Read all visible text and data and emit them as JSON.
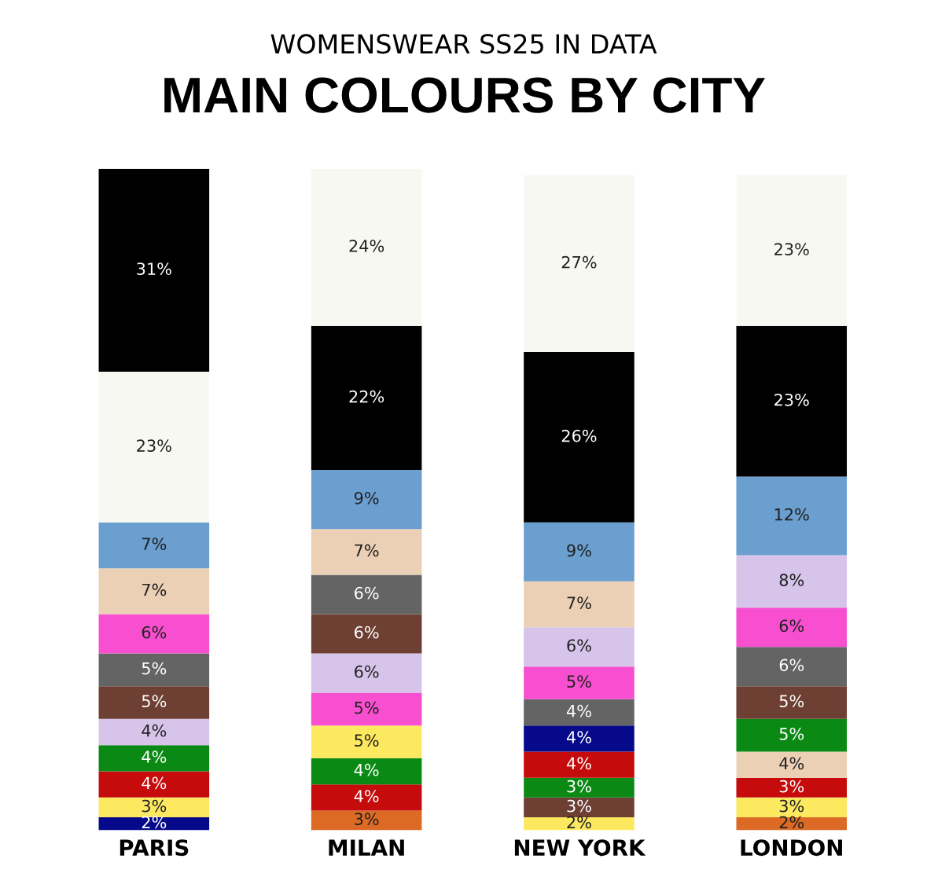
{
  "chart_data": {
    "type": "bar",
    "stacked": true,
    "title": "MAIN COLOURS BY CITY",
    "subtitle": "WOMENSWEAR SS25 IN DATA",
    "categories": [
      "PARIS",
      "MILAN",
      "NEW YORK",
      "LONDON"
    ],
    "series": [
      {
        "values": [
          2,
          3,
          2,
          2
        ],
        "colors": [
          "#060a8a",
          "#dc6a24",
          "#fde960",
          "#dc6a24"
        ],
        "value_labels": [
          "2%",
          "3%",
          "2%",
          "2%"
        ]
      },
      {
        "values": [
          3,
          4,
          3,
          3
        ],
        "colors": [
          "#fde960",
          "#c50b0b",
          "#6e3f33",
          "#fde960"
        ],
        "value_labels": [
          "3%",
          "4%",
          "3%",
          "3%"
        ]
      },
      {
        "values": [
          4,
          4,
          3,
          3
        ],
        "colors": [
          "#c50b0b",
          "#0a8a14",
          "#0a8a14",
          "#c50b0b"
        ],
        "value_labels": [
          "4%",
          "4%",
          "3%",
          "3%"
        ]
      },
      {
        "values": [
          4,
          5,
          4,
          4
        ],
        "colors": [
          "#0a8a14",
          "#fde960",
          "#c50b0b",
          "#ecd0b6"
        ],
        "value_labels": [
          "4%",
          "5%",
          "4%",
          "4%"
        ]
      },
      {
        "values": [
          4,
          5,
          4,
          5
        ],
        "colors": [
          "#d6c4ea",
          "#f74fcf",
          "#060a8a",
          "#0a8a14"
        ],
        "value_labels": [
          "4%",
          "5%",
          "4%",
          "5%"
        ]
      },
      {
        "values": [
          5,
          6,
          4,
          5
        ],
        "colors": [
          "#6e3f33",
          "#d6c4ea",
          "#646464",
          "#6e3f33"
        ],
        "value_labels": [
          "5%",
          "6%",
          "4%",
          "5%"
        ]
      },
      {
        "values": [
          5,
          6,
          5,
          6
        ],
        "colors": [
          "#646464",
          "#6e3f33",
          "#f74fcf",
          "#646464"
        ],
        "value_labels": [
          "5%",
          "6%",
          "5%",
          "6%"
        ]
      },
      {
        "values": [
          6,
          6,
          6,
          6
        ],
        "colors": [
          "#f74fcf",
          "#646464",
          "#d6c4ea",
          "#f74fcf"
        ],
        "value_labels": [
          "6%",
          "6%",
          "6%",
          "6%"
        ]
      },
      {
        "values": [
          7,
          7,
          7,
          8
        ],
        "colors": [
          "#ecd0b6",
          "#ecd0b6",
          "#ecd0b6",
          "#d6c4ea"
        ],
        "value_labels": [
          "7%",
          "7%",
          "7%",
          "8%"
        ]
      },
      {
        "values": [
          7,
          9,
          9,
          12
        ],
        "colors": [
          "#6a9fd0",
          "#6a9fd0",
          "#6a9fd0",
          "#6a9fd0"
        ],
        "value_labels": [
          "7%",
          "9%",
          "9%",
          "12%"
        ]
      },
      {
        "values": [
          23,
          22,
          26,
          23
        ],
        "colors": [
          "#f8f8f3",
          "#000000",
          "#000000",
          "#000000"
        ],
        "value_labels": [
          "23%",
          "22%",
          "26%",
          "23%"
        ]
      },
      {
        "values": [
          31,
          24,
          27,
          23
        ],
        "colors": [
          "#000000",
          "#f8f8f3",
          "#f8f8f3",
          "#f8f8f3"
        ],
        "value_labels": [
          "31%",
          "24%",
          "27%",
          "23%"
        ]
      }
    ],
    "grid": false,
    "legend": false
  }
}
